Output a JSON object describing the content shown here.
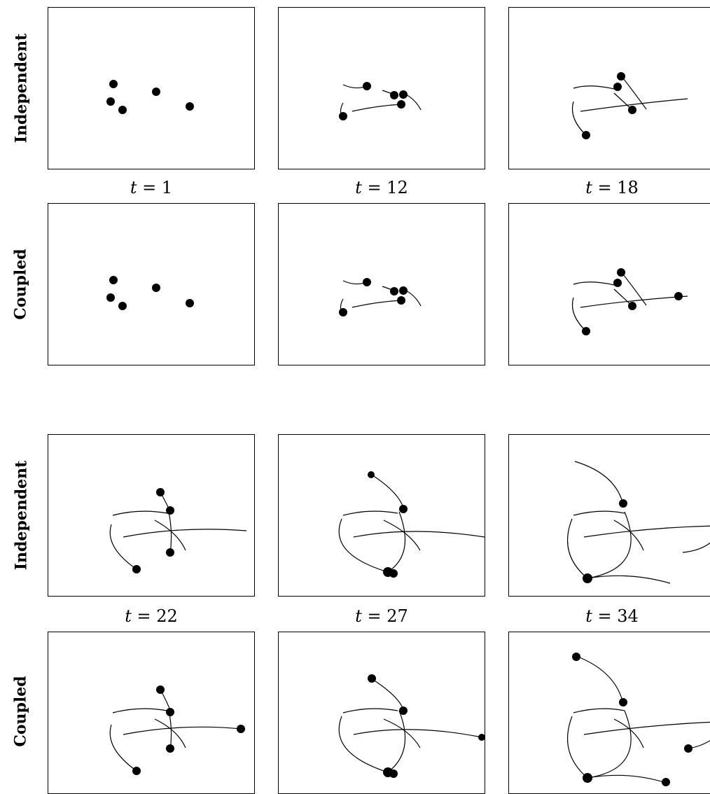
{
  "row_labels": {
    "independent": "Independent",
    "coupled": "Coupled"
  },
  "time_labels": {
    "t1": {
      "var": "t",
      "eq": "= 1"
    },
    "t12": {
      "var": "t",
      "eq": "= 12"
    },
    "t18": {
      "var": "t",
      "eq": "= 18"
    },
    "t22": {
      "var": "t",
      "eq": "= 22"
    },
    "t27": {
      "var": "t",
      "eq": "= 27"
    },
    "t34": {
      "var": "t",
      "eq": "= 34"
    }
  },
  "colors": {
    "ink": "#000000",
    "background": "#ffffff"
  }
}
